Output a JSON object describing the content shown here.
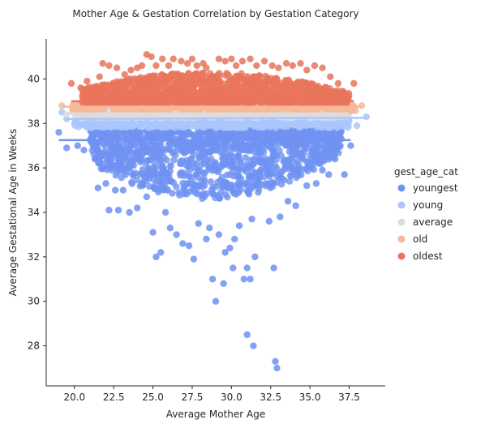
{
  "chart_data": {
    "type": "scatter",
    "title": "Mother Age & Gestation Correlation by Gestation Category",
    "xlabel": "Average Mother Age",
    "ylabel": "Average Gestational Age in Weeks",
    "xlim": [
      18.2,
      39.8
    ],
    "ylim": [
      26.2,
      41.8
    ],
    "x_ticks": [
      "20.0",
      "22.5",
      "25.0",
      "27.5",
      "30.0",
      "32.5",
      "35.0",
      "37.5"
    ],
    "x_tick_values": [
      20.0,
      22.5,
      25.0,
      27.5,
      30.0,
      32.5,
      35.0,
      37.5
    ],
    "y_ticks": [
      "28",
      "30",
      "32",
      "34",
      "36",
      "38",
      "40"
    ],
    "y_tick_values": [
      28,
      30,
      32,
      34,
      36,
      38,
      40
    ],
    "grid": false,
    "legend_title": "gest_age_cat",
    "legend_placement": "right",
    "series": [
      {
        "name": "youngest",
        "color": "#6f92f3",
        "density_band": {
          "x_start": 21.0,
          "x_end": 37.0,
          "y_top": 37.7,
          "y_bottom": 34.6,
          "x_center": 28.5
        },
        "points": [
          [
            19.0,
            37.6
          ],
          [
            19.5,
            36.9
          ],
          [
            20.2,
            37.0
          ],
          [
            20.6,
            36.8
          ],
          [
            21.3,
            36.4
          ],
          [
            21.5,
            35.1
          ],
          [
            21.8,
            36.0
          ],
          [
            22.0,
            35.3
          ],
          [
            22.2,
            34.1
          ],
          [
            22.6,
            35.0
          ],
          [
            22.8,
            34.1
          ],
          [
            23.1,
            35.0
          ],
          [
            23.5,
            34.0
          ],
          [
            24.0,
            34.2
          ],
          [
            24.6,
            34.7
          ],
          [
            25.0,
            33.1
          ],
          [
            25.2,
            32.0
          ],
          [
            25.5,
            32.2
          ],
          [
            25.8,
            34.0
          ],
          [
            26.1,
            33.3
          ],
          [
            26.5,
            33.0
          ],
          [
            26.9,
            32.6
          ],
          [
            27.3,
            32.5
          ],
          [
            27.6,
            31.9
          ],
          [
            27.9,
            33.5
          ],
          [
            28.4,
            32.8
          ],
          [
            28.6,
            33.3
          ],
          [
            28.8,
            31.0
          ],
          [
            29.0,
            30.0
          ],
          [
            29.2,
            33.0
          ],
          [
            29.5,
            30.8
          ],
          [
            29.6,
            32.2
          ],
          [
            29.9,
            32.4
          ],
          [
            30.1,
            31.5
          ],
          [
            30.2,
            32.8
          ],
          [
            30.5,
            33.4
          ],
          [
            30.8,
            31.0
          ],
          [
            31.0,
            31.5
          ],
          [
            31.2,
            31.0
          ],
          [
            31.3,
            33.7
          ],
          [
            31.5,
            32.0
          ],
          [
            31.0,
            28.5
          ],
          [
            31.4,
            28.0
          ],
          [
            32.4,
            33.6
          ],
          [
            32.7,
            31.5
          ],
          [
            32.8,
            27.3
          ],
          [
            32.9,
            27.0
          ],
          [
            33.1,
            33.8
          ],
          [
            33.6,
            34.5
          ],
          [
            34.1,
            34.3
          ],
          [
            34.8,
            35.2
          ],
          [
            35.4,
            35.3
          ],
          [
            35.8,
            35.9
          ],
          [
            36.2,
            35.7
          ],
          [
            36.6,
            36.4
          ],
          [
            37.2,
            35.7
          ],
          [
            37.6,
            37.0
          ],
          [
            37.0,
            37.3
          ]
        ]
      },
      {
        "name": "young",
        "color": "#aac7fd",
        "density_band": {
          "x_start": 20.0,
          "x_end": 37.5,
          "y_top": 38.2,
          "y_bottom": 37.8,
          "x_center": 28.5
        },
        "points": [
          [
            19.2,
            38.5
          ],
          [
            19.5,
            38.2
          ],
          [
            20.0,
            38.0
          ],
          [
            20.5,
            38.4
          ],
          [
            36.9,
            38.0
          ],
          [
            37.5,
            38.1
          ],
          [
            38.0,
            37.9
          ],
          [
            38.6,
            38.3
          ]
        ]
      },
      {
        "name": "average",
        "color": "#dddcdc",
        "density_band": {
          "x_start": 20.0,
          "x_end": 37.5,
          "y_top": 38.55,
          "y_bottom": 38.25,
          "x_center": 28.5
        },
        "points": [
          [
            19.5,
            38.4
          ],
          [
            20.3,
            38.5
          ],
          [
            36.8,
            38.5
          ],
          [
            37.4,
            38.4
          ]
        ]
      },
      {
        "name": "old",
        "color": "#f7b89c",
        "density_band": {
          "x_start": 19.8,
          "x_end": 38.0,
          "y_top": 38.9,
          "y_bottom": 38.55,
          "x_center": 28.5
        },
        "points": [
          [
            19.2,
            38.8
          ],
          [
            20.0,
            38.7
          ],
          [
            37.6,
            38.8
          ],
          [
            38.3,
            38.8
          ]
        ]
      },
      {
        "name": "oldest",
        "color": "#e8765c",
        "density_band": {
          "x_start": 20.5,
          "x_end": 37.5,
          "y_top": 40.3,
          "y_bottom": 38.9,
          "x_center": 28.5
        },
        "points": [
          [
            19.8,
            39.8
          ],
          [
            20.4,
            39.6
          ],
          [
            20.8,
            39.9
          ],
          [
            21.2,
            39.5
          ],
          [
            21.6,
            40.1
          ],
          [
            21.8,
            40.7
          ],
          [
            22.2,
            40.6
          ],
          [
            22.7,
            40.5
          ],
          [
            23.2,
            40.2
          ],
          [
            23.6,
            40.4
          ],
          [
            24.0,
            40.5
          ],
          [
            24.3,
            40.6
          ],
          [
            24.6,
            41.1
          ],
          [
            24.9,
            41.0
          ],
          [
            25.2,
            40.6
          ],
          [
            25.6,
            40.9
          ],
          [
            26.0,
            40.6
          ],
          [
            26.3,
            40.9
          ],
          [
            26.8,
            40.8
          ],
          [
            27.2,
            40.7
          ],
          [
            27.5,
            40.9
          ],
          [
            27.8,
            40.6
          ],
          [
            28.2,
            40.7
          ],
          [
            28.4,
            40.5
          ],
          [
            29.2,
            40.9
          ],
          [
            29.6,
            40.8
          ],
          [
            30.0,
            40.9
          ],
          [
            30.3,
            40.6
          ],
          [
            30.7,
            40.8
          ],
          [
            31.2,
            40.9
          ],
          [
            31.6,
            40.6
          ],
          [
            32.1,
            40.8
          ],
          [
            32.6,
            40.6
          ],
          [
            33.0,
            40.5
          ],
          [
            33.5,
            40.7
          ],
          [
            33.9,
            40.6
          ],
          [
            34.4,
            40.7
          ],
          [
            34.8,
            40.4
          ],
          [
            35.3,
            40.6
          ],
          [
            35.8,
            40.5
          ],
          [
            36.3,
            40.1
          ],
          [
            36.8,
            39.8
          ],
          [
            37.3,
            39.3
          ],
          [
            37.8,
            39.8
          ]
        ]
      }
    ]
  }
}
